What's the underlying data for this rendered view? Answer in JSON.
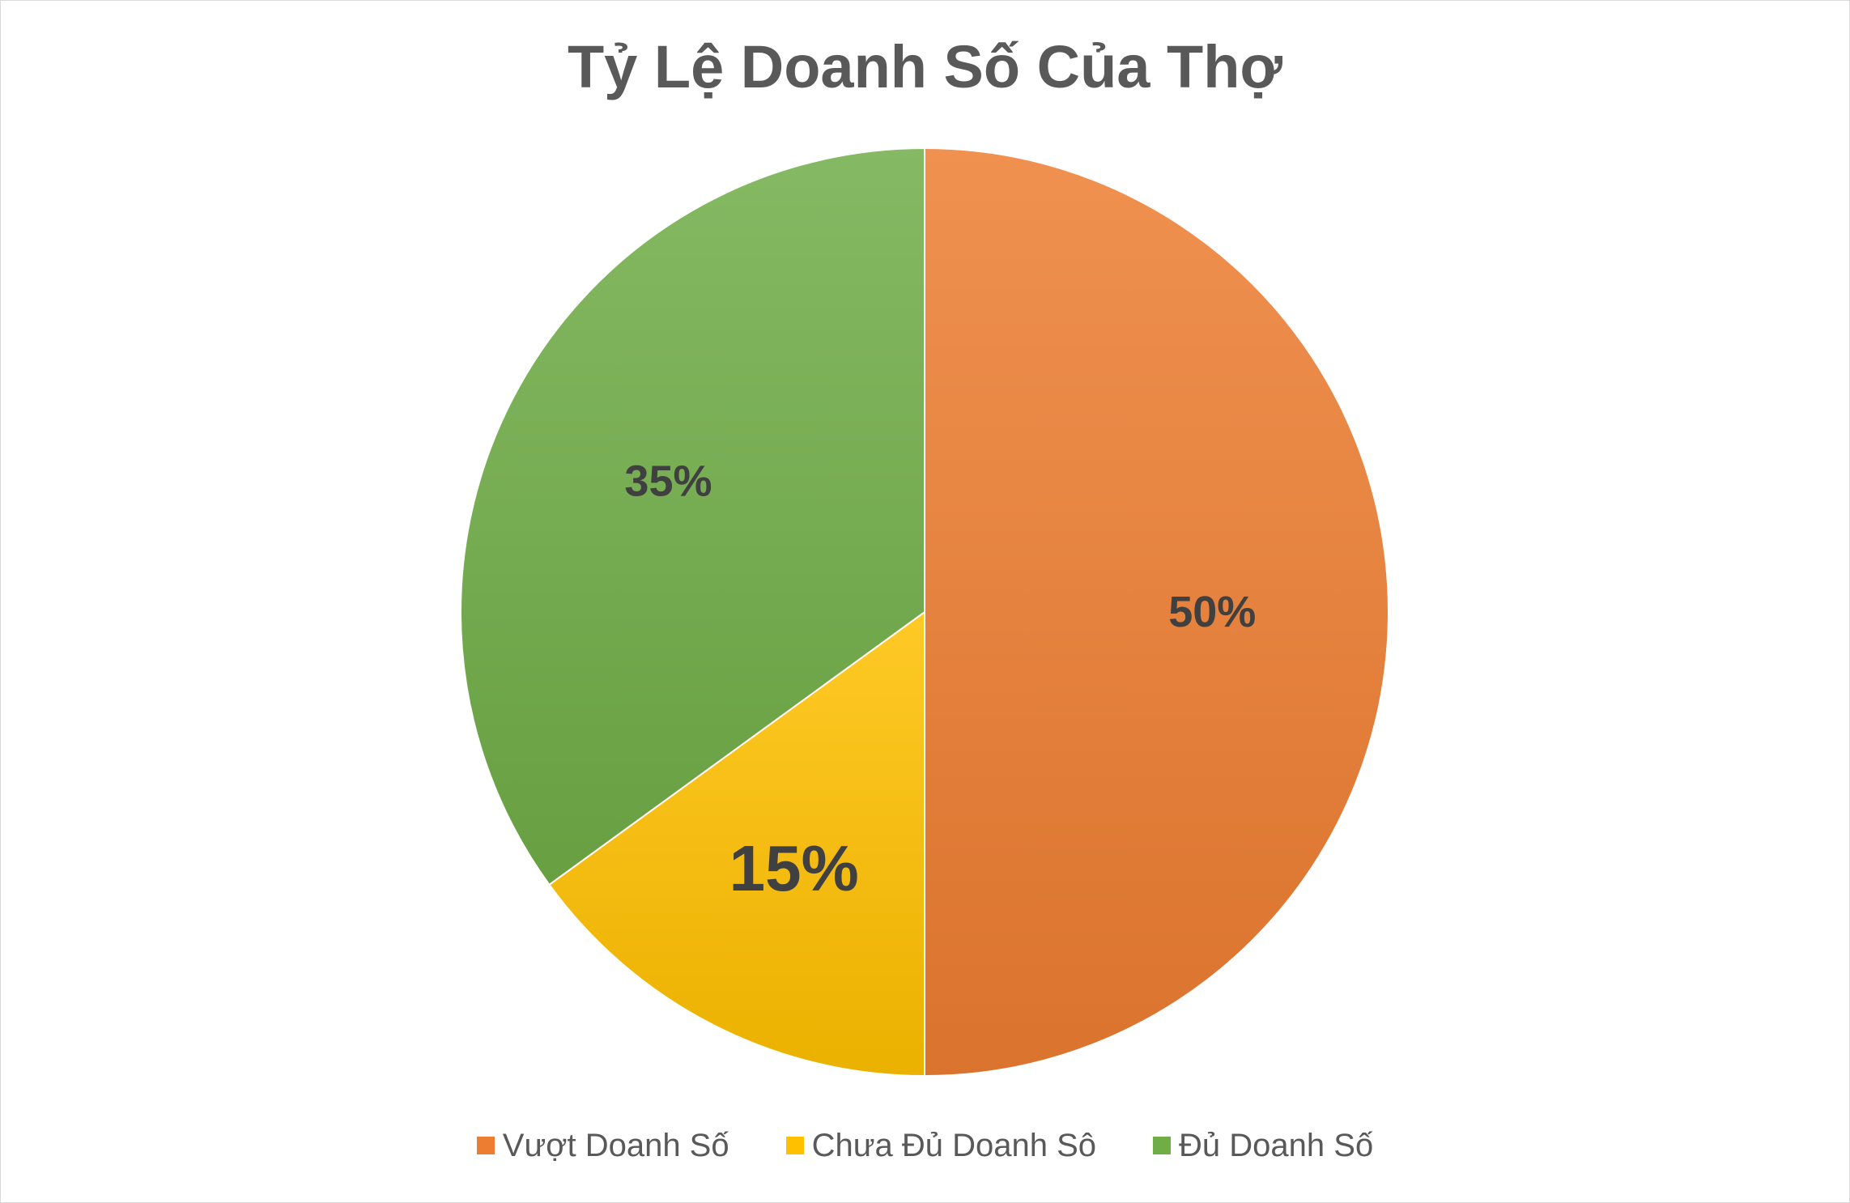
{
  "chart_data": {
    "type": "pie",
    "title": "Tỷ Lệ Doanh Số Của Thợ",
    "categories": [
      "Vượt Doanh Số",
      "Chưa Đủ Doanh Sô",
      "Đủ Doanh Số"
    ],
    "values": [
      50,
      15,
      35
    ],
    "data_labels": [
      "50%",
      "15%",
      "35%"
    ],
    "colors": [
      "#ED7D31",
      "#FFC000",
      "#70AD47"
    ],
    "legend_position": "bottom"
  }
}
